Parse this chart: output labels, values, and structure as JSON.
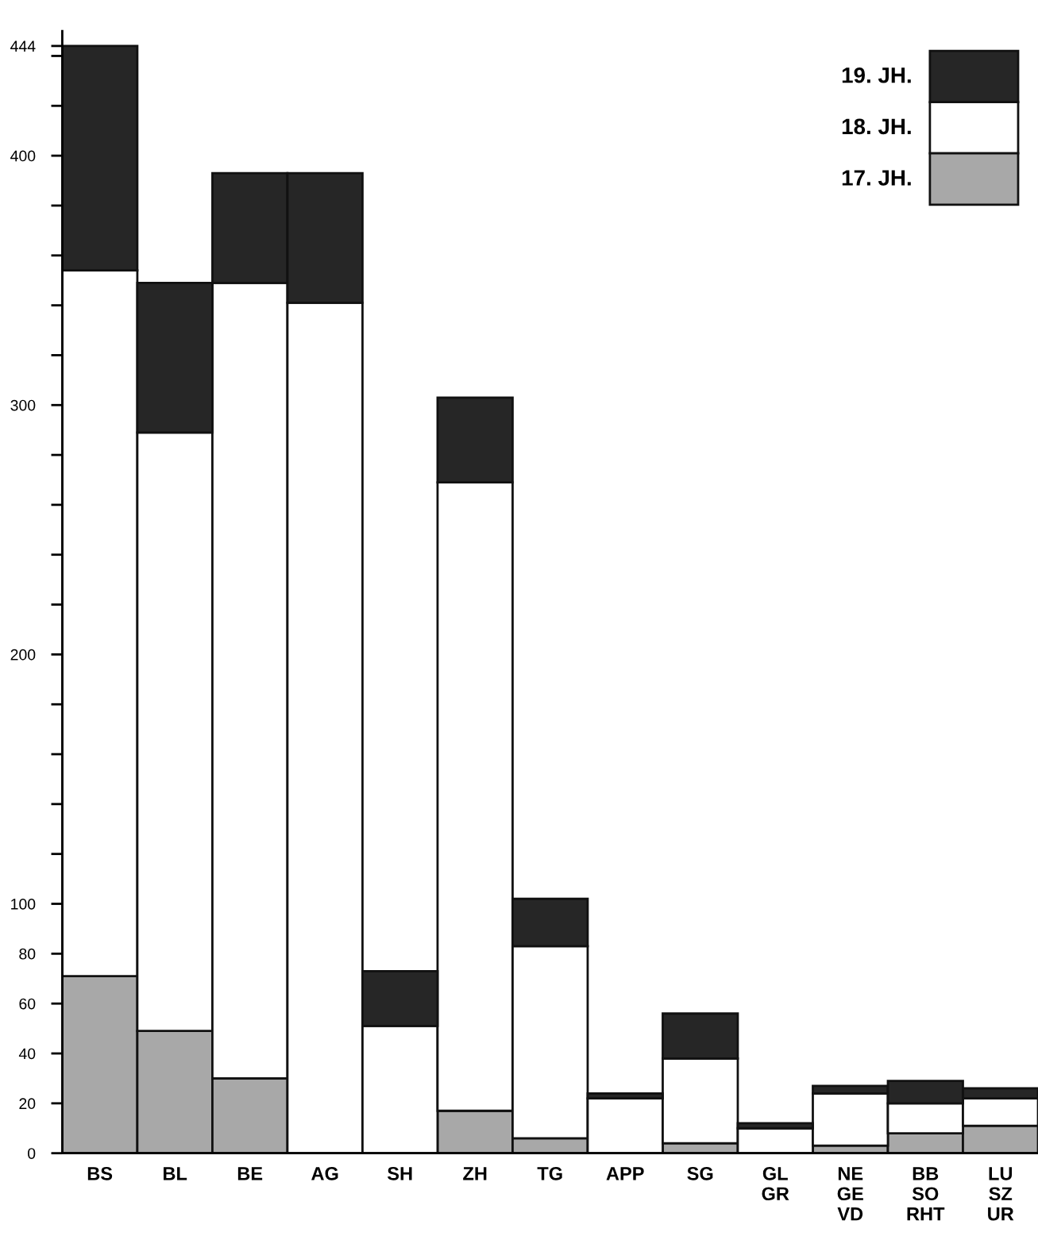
{
  "chart_data": {
    "type": "bar",
    "stacked": true,
    "categories": [
      "BS",
      "BL",
      "BE",
      "AG",
      "SH",
      "ZH",
      "TG",
      "APP",
      "SG",
      "GL\nGR",
      "NE\nGE\nVD",
      "BB\nSO\nRHT",
      "LU\nSZ\nUR"
    ],
    "series": [
      {
        "name": "17. JH.",
        "color": "#a8a8a8",
        "values": [
          71,
          49,
          30,
          0,
          0,
          17,
          6,
          0,
          4,
          0,
          3,
          8,
          11
        ]
      },
      {
        "name": "18. JH.",
        "color": "#ffffff",
        "values": [
          283,
          240,
          319,
          341,
          51,
          252,
          77,
          22,
          34,
          10,
          21,
          12,
          11
        ]
      },
      {
        "name": "19. JH.",
        "color": "#262626",
        "values": [
          90,
          60,
          44,
          52,
          22,
          34,
          19,
          2,
          18,
          2,
          3,
          9,
          4
        ]
      }
    ],
    "ylim": [
      0,
      450
    ],
    "yticks": [
      0,
      20,
      40,
      60,
      80,
      100,
      {
        "value": 120,
        "label": null
      },
      {
        "value": 140,
        "label": null
      },
      {
        "value": 160,
        "label": null
      },
      {
        "value": 180,
        "label": null
      },
      200,
      {
        "value": 220,
        "label": null
      },
      {
        "value": 240,
        "label": null
      },
      {
        "value": 260,
        "label": null
      },
      {
        "value": 280,
        "label": null
      },
      300,
      {
        "value": 320,
        "label": null
      },
      {
        "value": 340,
        "label": null
      },
      {
        "value": 360,
        "label": null
      },
      {
        "value": 380,
        "label": null
      },
      400,
      {
        "value": 420,
        "label": null
      },
      {
        "value": 440,
        "label": null
      },
      444
    ],
    "grid": false,
    "legend": "top right"
  }
}
